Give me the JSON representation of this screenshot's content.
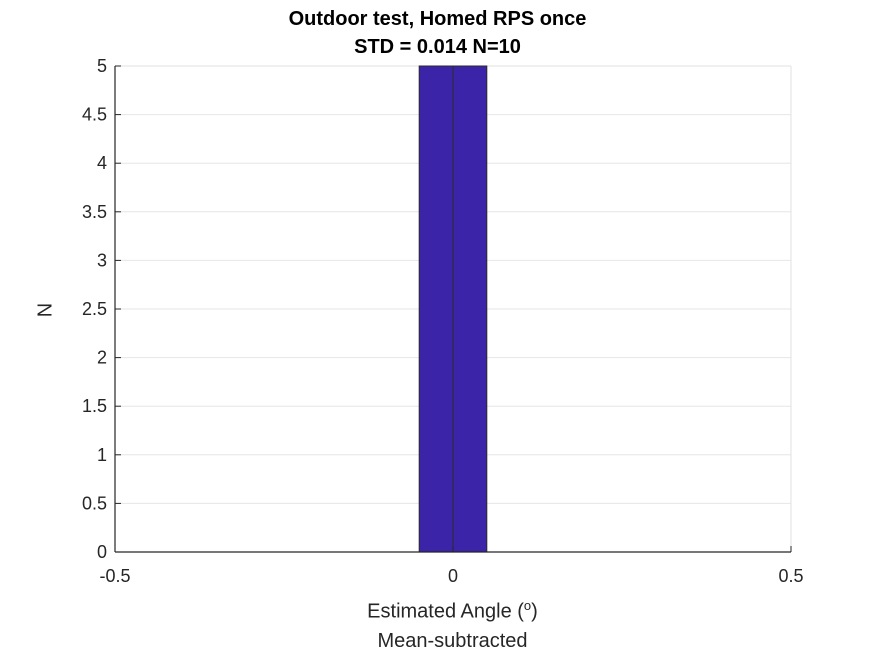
{
  "chart_data": {
    "type": "bar",
    "title": "Outdoor test, Homed RPS once",
    "subtitle": "STD = 0.014 N=10",
    "xlabel_prefix": "Estimated Angle (",
    "xlabel_sup": "o",
    "xlabel_suffix": ")",
    "xlabel_line2": "Mean-subtracted",
    "ylabel": "N",
    "xlim": [
      -0.5,
      0.5
    ],
    "ylim": [
      0,
      5
    ],
    "xticks": [
      -0.5,
      0,
      0.5
    ],
    "xtick_labels": [
      "-0.5",
      "0",
      "0.5"
    ],
    "yticks": [
      0,
      0.5,
      1,
      1.5,
      2,
      2.5,
      3,
      3.5,
      4,
      4.5,
      5
    ],
    "ytick_labels": [
      "0",
      "0.5",
      "1",
      "1.5",
      "2",
      "2.5",
      "3",
      "3.5",
      "4",
      "4.5",
      "5"
    ],
    "bins": [
      {
        "x_start": -0.05,
        "x_end": 0.0,
        "count": 5
      },
      {
        "x_start": 0.0,
        "x_end": 0.05,
        "count": 5
      }
    ],
    "grid": "y-major",
    "bar_color": "#3c24a8",
    "edge_color": "#2b2b2b"
  }
}
